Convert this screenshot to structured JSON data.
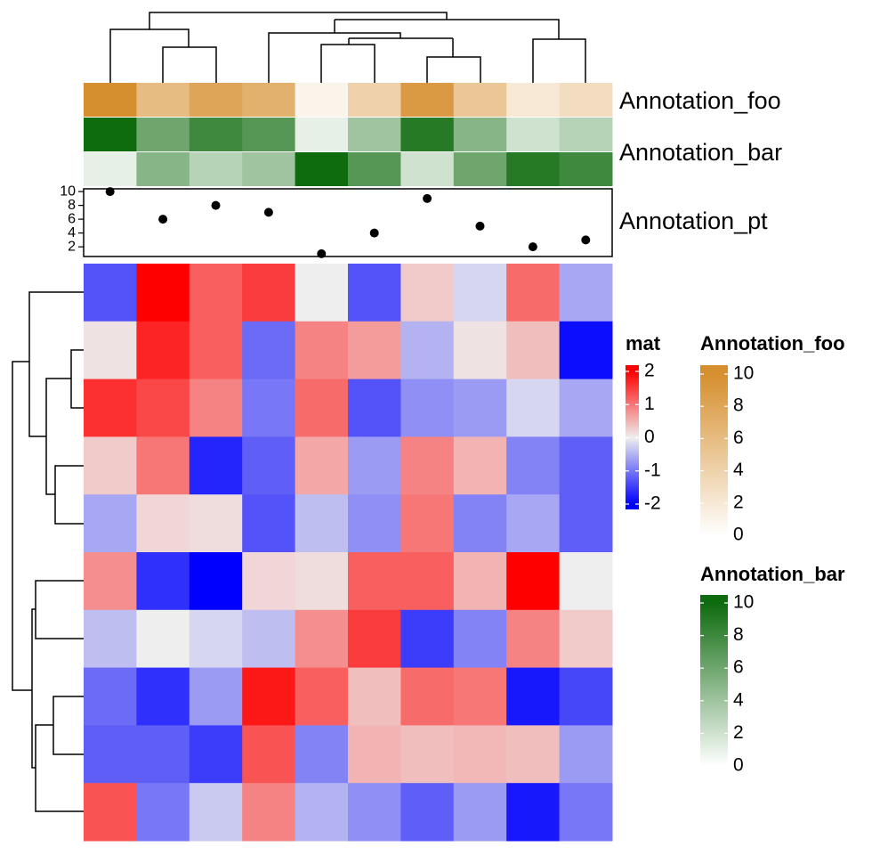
{
  "chart_data": {
    "type": "heatmap",
    "matrix": [
      [
        -1.3,
        2.0,
        1.2,
        1.5,
        0.0,
        -1.3,
        0.3,
        -0.2,
        1.1,
        -0.6
      ],
      [
        0.1,
        1.7,
        1.2,
        -1.1,
        0.9,
        0.7,
        -0.5,
        0.1,
        0.4,
        -1.9
      ],
      [
        1.6,
        1.4,
        0.9,
        -1.0,
        1.1,
        -1.3,
        -0.8,
        -0.7,
        -0.2,
        -0.6
      ],
      [
        0.3,
        1.0,
        -1.7,
        -1.2,
        0.6,
        -0.7,
        0.9,
        0.5,
        -0.9,
        -1.2
      ],
      [
        -0.6,
        0.2,
        0.15,
        -1.3,
        -0.4,
        -0.8,
        1.0,
        -0.9,
        -0.6,
        -1.2
      ],
      [
        0.8,
        -1.6,
        -2.0,
        0.2,
        0.15,
        1.2,
        1.2,
        0.5,
        2.0,
        0.0
      ],
      [
        -0.4,
        0.0,
        -0.2,
        -0.4,
        0.8,
        1.5,
        -1.5,
        -0.9,
        0.9,
        0.3
      ],
      [
        -1.1,
        -1.6,
        -0.7,
        1.8,
        1.2,
        0.4,
        1.1,
        1.0,
        -1.8,
        -1.4
      ],
      [
        -1.2,
        -1.2,
        -1.5,
        1.3,
        -0.9,
        0.5,
        0.4,
        0.45,
        0.4,
        -0.7
      ],
      [
        1.3,
        -1.0,
        -0.3,
        0.9,
        -0.5,
        -0.8,
        -1.2,
        -0.7,
        -1.8,
        -1.0
      ]
    ],
    "annotations": [
      {
        "label": "Annotation_foo",
        "values": [
          10,
          6,
          8,
          7,
          1,
          4,
          9,
          5,
          2,
          3
        ],
        "lim": [
          0,
          10
        ],
        "colors": [
          "#ffffff",
          "#d68f2e"
        ]
      },
      {
        "values": [
          10,
          6,
          8,
          7,
          1,
          4,
          9,
          5,
          2,
          3
        ],
        "lim": [
          0,
          10
        ],
        "colors": [
          "#ffffff",
          "#0e6b0e"
        ]
      },
      {
        "label": "Annotation_bar",
        "values": [
          1,
          5,
          3,
          4,
          10,
          7,
          2,
          6,
          9,
          8
        ],
        "lim": [
          0,
          10
        ],
        "colors": [
          "#ffffff",
          "#0e6b0e"
        ]
      }
    ],
    "points": {
      "label": "Annotation_pt",
      "values": [
        10,
        6,
        8,
        7,
        1,
        4,
        9,
        5,
        2,
        3
      ],
      "ylim": [
        0.6,
        10.4
      ],
      "yticks": [
        2,
        4,
        6,
        8,
        10
      ],
      "color": "#000000"
    },
    "legends": [
      {
        "title": "mat",
        "lim": [
          -2,
          2
        ],
        "ticks": [
          -2,
          -1,
          0,
          1,
          2
        ],
        "colors": [
          "#0000ff",
          "#eeeeee",
          "#ff0000"
        ]
      },
      {
        "title": "Annotation_foo",
        "lim": [
          0,
          10
        ],
        "ticks": [
          0,
          2,
          4,
          6,
          8,
          10
        ],
        "colors": [
          "#ffffff",
          "#d68f2e"
        ]
      },
      {
        "title": "Annotation_bar",
        "lim": [
          0,
          10
        ],
        "ticks": [
          0,
          2,
          4,
          6,
          8,
          10
        ],
        "colors": [
          "#ffffff",
          "#0e6b0e"
        ]
      }
    ]
  }
}
